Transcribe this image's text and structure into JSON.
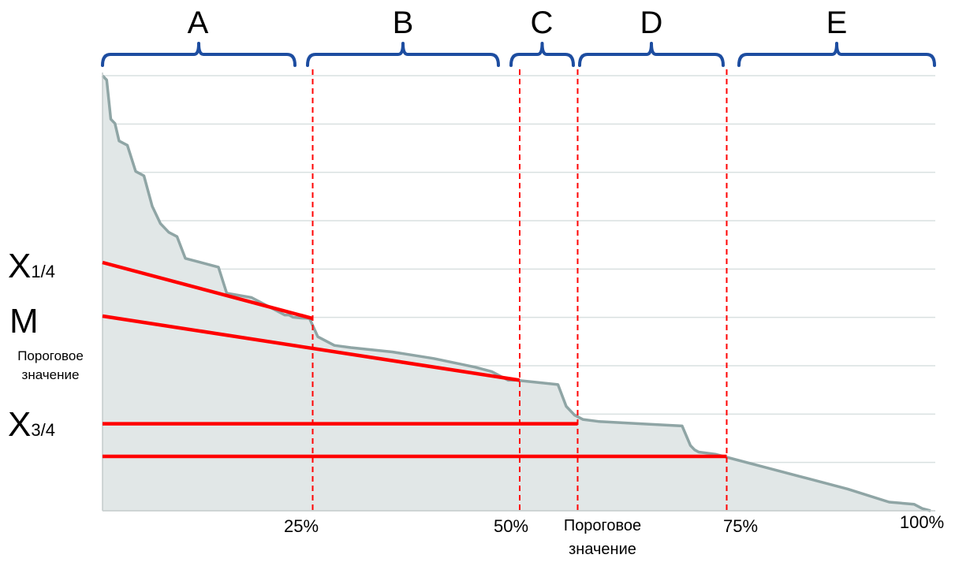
{
  "segments": [
    {
      "id": "A",
      "label": "A"
    },
    {
      "id": "B",
      "label": "B"
    },
    {
      "id": "C",
      "label": "C"
    },
    {
      "id": "D",
      "label": "D"
    },
    {
      "id": "E",
      "label": "E"
    }
  ],
  "x_labels": {
    "p25": "25%",
    "p50": "50%",
    "threshold_line1": "Пороговое",
    "threshold_line2": "значение",
    "p75": "75%",
    "p100": "100%"
  },
  "left_labels": {
    "q1_main": "X",
    "q1_sub": "1/4",
    "median": "M",
    "threshold_line1": "Пороговое",
    "threshold_line2": "значение",
    "q3_main": "X",
    "q3_sub": "3/4"
  },
  "colors": {
    "curve": "#8fa5a5",
    "fill": "#e1e7e7",
    "grid": "#d9e0e0",
    "axis": "#c4cccc",
    "brace": "#1d4da0",
    "marker": "#ff0000"
  },
  "chart_data": {
    "type": "area",
    "description_units": "x = share of observations (percent), y = relative value (0-100)",
    "x": [
      0,
      0.5,
      1,
      1.5,
      2,
      3,
      4,
      5,
      6,
      7,
      8,
      9,
      10,
      14,
      15,
      18,
      19,
      20,
      21,
      22,
      22.5,
      23,
      24,
      25,
      26,
      27,
      28,
      30,
      35,
      40,
      45,
      47,
      48,
      49,
      50,
      55,
      56,
      57,
      58,
      60,
      65,
      70,
      71,
      71.5,
      72,
      74,
      75,
      80,
      85,
      90,
      95,
      98,
      99,
      100
    ],
    "y": [
      100,
      99,
      90,
      89,
      85,
      84,
      78,
      77,
      70,
      66,
      64,
      63,
      58,
      56,
      50,
      49,
      48,
      47,
      46,
      45,
      45,
      44.5,
      44.3,
      44.2,
      40,
      39,
      38,
      37.5,
      36.5,
      35,
      33,
      32,
      31,
      30,
      30,
      29,
      24,
      22,
      21,
      20.5,
      20,
      19.5,
      15,
      14,
      13.5,
      13,
      12.5,
      10,
      7.5,
      5,
      2,
      1.5,
      0.5,
      0
    ],
    "quartile_markers": [
      {
        "name": "X1/4",
        "value": 44.2,
        "extends_to_pct": 25
      },
      {
        "name": "M",
        "value": 30,
        "extends_to_pct": 50
      },
      {
        "name": "Пороговое значение",
        "value": 20,
        "extends_to_pct": 57
      },
      {
        "name": "X3/4",
        "value": 12.5,
        "extends_to_pct": 75
      }
    ],
    "vertical_markers_pct": [
      25,
      50,
      57,
      75
    ],
    "xlim": [
      0,
      100
    ],
    "ylim": [
      0,
      100
    ],
    "grid": true
  }
}
